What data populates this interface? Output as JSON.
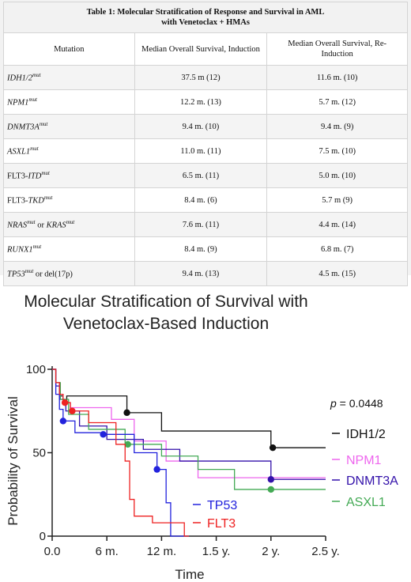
{
  "table": {
    "title_line1": "Table 1: Molecular Stratification of Response and Survival in AML",
    "title_line2": "with Venetoclax + HMAs",
    "headers": [
      "Mutation",
      "Median Overall Survival, Induction",
      "Median Overall Survival, Re-Induction"
    ],
    "rows": [
      {
        "pre": "",
        "gene": "IDH1/2",
        "sup": "mut",
        "mid": "",
        "gene2": "",
        "sup2": "",
        "post": "",
        "induction": "37.5 m (12)",
        "reinduction": "11.6 m. (10)"
      },
      {
        "pre": "",
        "gene": "NPM1",
        "sup": "mut",
        "mid": "",
        "gene2": "",
        "sup2": "",
        "post": "",
        "induction": "12.2 m. (13)",
        "reinduction": "5.7 m. (12)"
      },
      {
        "pre": "",
        "gene": "DNMT3A",
        "sup": "mut",
        "mid": "",
        "gene2": "",
        "sup2": "",
        "post": "",
        "induction": "9.4 m. (10)",
        "reinduction": "9.4 m. (9)"
      },
      {
        "pre": "",
        "gene": "ASXL1",
        "sup": "mut",
        "mid": "",
        "gene2": "",
        "sup2": "",
        "post": "",
        "induction": "11.0 m. (11)",
        "reinduction": "7.5 m. (10)"
      },
      {
        "pre": "FLT3-",
        "gene": "ITD",
        "sup": "mut",
        "mid": "",
        "gene2": "",
        "sup2": "",
        "post": "",
        "induction": "6.5 m. (11)",
        "reinduction": "5.0 m. (10)"
      },
      {
        "pre": "FLT3-",
        "gene": "TKD",
        "sup": "mut",
        "mid": "",
        "gene2": "",
        "sup2": "",
        "post": "",
        "induction": "8.4 m. (6)",
        "reinduction": "5.7 m (9)"
      },
      {
        "pre": "",
        "gene": "NRAS",
        "sup": "mut",
        "mid": " or ",
        "gene2": "KRAS",
        "sup2": "mut",
        "post": "",
        "induction": "7.6 m. (11)",
        "reinduction": "4.4 m. (14)"
      },
      {
        "pre": "",
        "gene": "RUNX1",
        "sup": "mut",
        "mid": "",
        "gene2": "",
        "sup2": "",
        "post": "",
        "induction": "8.4 m. (9)",
        "reinduction": "6.8 m. (7)"
      },
      {
        "pre": "",
        "gene": "TP53",
        "sup": "mut",
        "mid": "",
        "gene2": "",
        "sup2": "",
        "post": " or del(17p)",
        "induction": "9.4 m. (13)",
        "reinduction": "4.5 m. (15)"
      }
    ]
  },
  "chart_data": {
    "type": "line",
    "title_line1": "Molecular Stratification of Survival with",
    "title_line2": "Venetoclax-Based Induction",
    "xlabel": "Time",
    "ylabel": "Probability of Survival",
    "xlim": [
      0,
      30
    ],
    "ylim": [
      0,
      100
    ],
    "xticks": [
      0,
      6,
      12,
      18,
      24,
      30
    ],
    "xtick_labels": [
      "0.0",
      "6 m.",
      "12 m.",
      "1.5 y.",
      "2 y.",
      "2.5 y."
    ],
    "yticks": [
      0,
      50,
      100
    ],
    "ytick_labels": [
      "0",
      "50",
      "100"
    ],
    "annotation": {
      "prefix": "p",
      "text": " = 0.0448"
    },
    "series": [
      {
        "name": "IDH1/2",
        "color": "#111111",
        "x": [
          0,
          0.4,
          0.8,
          1.2,
          1.6,
          8.2,
          12.0,
          24.0,
          30
        ],
        "y": [
          100,
          92,
          84,
          80,
          84,
          74,
          63,
          53,
          53
        ],
        "censored": [
          [
            8.2,
            74
          ],
          [
            24.2,
            53
          ]
        ]
      },
      {
        "name": "NPM1",
        "color": "#ee66ee",
        "x": [
          0,
          0.4,
          0.8,
          1.2,
          2.0,
          6.5,
          9.0,
          12.5,
          16.0,
          30
        ],
        "y": [
          100,
          92,
          85,
          80,
          77,
          70,
          57,
          45,
          35,
          35
        ],
        "censored": []
      },
      {
        "name": "DNMT3A",
        "color": "#3311aa",
        "x": [
          0,
          0.4,
          0.8,
          1.5,
          3.0,
          6.0,
          10.0,
          14.0,
          24.0,
          30
        ],
        "y": [
          100,
          90,
          82,
          75,
          66,
          58,
          52,
          45,
          34,
          34
        ],
        "censored": [
          [
            24.0,
            34
          ]
        ]
      },
      {
        "name": "ASXL1",
        "color": "#44aa55",
        "x": [
          0,
          0.4,
          0.9,
          1.8,
          4.0,
          8.0,
          12.0,
          16.0,
          20.0,
          30
        ],
        "y": [
          100,
          92,
          82,
          73,
          64,
          55,
          48,
          40,
          28,
          28
        ],
        "censored": [
          [
            8.3,
            55
          ],
          [
            24.0,
            28
          ]
        ]
      },
      {
        "name": "TP53",
        "color": "#2222dd",
        "x": [
          0,
          0.4,
          0.8,
          1.2,
          2.5,
          5.5,
          9.0,
          11.5,
          12.5,
          13.0,
          15.0
        ],
        "y": [
          100,
          85,
          76,
          69,
          62,
          61,
          50,
          40,
          20,
          0,
          0
        ],
        "censored": [
          [
            1.2,
            69
          ],
          [
            5.6,
            61
          ],
          [
            11.5,
            40
          ]
        ]
      },
      {
        "name": "FLT3",
        "color": "#ee2222",
        "x": [
          0,
          0.4,
          0.8,
          1.2,
          2.0,
          4.0,
          7.0,
          8.0,
          8.5,
          9.0,
          11.0,
          14.5,
          15.0
        ],
        "y": [
          100,
          92,
          85,
          80,
          75,
          68,
          55,
          45,
          22,
          12,
          8,
          0,
          0
        ],
        "censored": [
          [
            1.4,
            80
          ],
          [
            2.2,
            75
          ]
        ]
      }
    ]
  }
}
